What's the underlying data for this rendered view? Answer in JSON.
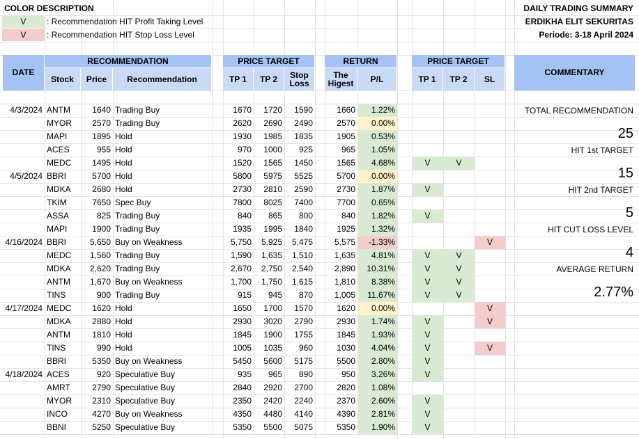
{
  "legend": {
    "title": "COLOR DESCRIPTION",
    "items": [
      {
        "mark": "V",
        "text": ": Recommendation HIT Profit Taking Level",
        "color": "#d9ead3"
      },
      {
        "mark": "V",
        "text": ": Recommendation HIT Stop Loss Level",
        "color": "#f4cccc"
      }
    ]
  },
  "summary": {
    "title": "DAILY TRADING SUMMARY",
    "company": "ERDIKHA ELIT SEKURITAS",
    "period": "Periode:  3-18 April 2024"
  },
  "headers": {
    "date": "DATE",
    "recommendation": "RECOMMENDATION",
    "stock": "Stock",
    "price": "Price",
    "recommendation_col": "Recommendation",
    "price_target": "PRICE TARGET",
    "tp1": "TP 1",
    "tp2": "TP 2",
    "stop_loss": "Stop Loss",
    "return": "RETURN",
    "the_highest": "The Higest",
    "pl": "P/L",
    "price_target2": "PRICE TARGET",
    "hit_tp1": "TP 1",
    "hit_tp2": "TP 2",
    "hit_sl": "SL",
    "commentary": "COMMENTARY"
  },
  "rows": [
    {
      "date": "4/3/2024",
      "stock": "ANTM",
      "price": "1640",
      "rec": "Trading Buy",
      "tp1": "1670",
      "tp2": "1720",
      "sl": "1590",
      "high": "1660",
      "pl": "1.22%",
      "pl_status": "pos",
      "hit_tp1": "",
      "hit_tp2": "",
      "hit_sl": ""
    },
    {
      "date": "",
      "stock": "MYOR",
      "price": "2570",
      "rec": "Trading Buy",
      "tp1": "2620",
      "tp2": "2690",
      "sl": "2490",
      "high": "2570",
      "pl": "0.00%",
      "pl_status": "zero",
      "hit_tp1": "",
      "hit_tp2": "",
      "hit_sl": ""
    },
    {
      "date": "",
      "stock": "MAPI",
      "price": "1895",
      "rec": "Hold",
      "tp1": "1930",
      "tp2": "1985",
      "sl": "1835",
      "high": "1905",
      "pl": "0.53%",
      "pl_status": "pos",
      "hit_tp1": "",
      "hit_tp2": "",
      "hit_sl": ""
    },
    {
      "date": "",
      "stock": "ACES",
      "price": "955",
      "rec": "Hold",
      "tp1": "970",
      "tp2": "1000",
      "sl": "925",
      "high": "965",
      "pl": "1.05%",
      "pl_status": "pos",
      "hit_tp1": "",
      "hit_tp2": "",
      "hit_sl": ""
    },
    {
      "date": "",
      "stock": "MEDC",
      "price": "1495",
      "rec": "Hold",
      "tp1": "1520",
      "tp2": "1565",
      "sl": "1450",
      "high": "1565",
      "pl": "4.68%",
      "pl_status": "pos",
      "hit_tp1": "V",
      "hit_tp2": "V",
      "hit_sl": ""
    },
    {
      "date": "4/5/2024",
      "stock": "BBRI",
      "price": "5700",
      "rec": "Hold",
      "tp1": "5800",
      "tp2": "5975",
      "sl": "5525",
      "high": "5700",
      "pl": "0.00%",
      "pl_status": "zero",
      "hit_tp1": "",
      "hit_tp2": "",
      "hit_sl": ""
    },
    {
      "date": "",
      "stock": "MDKA",
      "price": "2680",
      "rec": "Hold",
      "tp1": "2730",
      "tp2": "2810",
      "sl": "2590",
      "high": "2730",
      "pl": "1.87%",
      "pl_status": "pos",
      "hit_tp1": "V",
      "hit_tp2": "",
      "hit_sl": ""
    },
    {
      "date": "",
      "stock": "TKIM",
      "price": "7650",
      "rec": "Spec Buy",
      "tp1": "7800",
      "tp2": "8025",
      "sl": "7400",
      "high": "7700",
      "pl": "0.65%",
      "pl_status": "pos",
      "hit_tp1": "",
      "hit_tp2": "",
      "hit_sl": ""
    },
    {
      "date": "",
      "stock": "ASSA",
      "price": "825",
      "rec": "Trading Buy",
      "tp1": "840",
      "tp2": "865",
      "sl": "800",
      "high": "840",
      "pl": "1.82%",
      "pl_status": "pos",
      "hit_tp1": "V",
      "hit_tp2": "",
      "hit_sl": ""
    },
    {
      "date": "",
      "stock": "MAPI",
      "price": "1900",
      "rec": "Trading Buy",
      "tp1": "1935",
      "tp2": "1995",
      "sl": "1840",
      "high": "1925",
      "pl": "1.32%",
      "pl_status": "pos",
      "hit_tp1": "",
      "hit_tp2": "",
      "hit_sl": ""
    },
    {
      "date": "4/16/2024",
      "stock": "BBRI",
      "price": "5,650",
      "rec": "Buy on Weakness",
      "tp1": "5,750",
      "tp2": "5,925",
      "sl": "5,475",
      "high": "5,575",
      "pl": "-1.33%",
      "pl_status": "neg",
      "hit_tp1": "",
      "hit_tp2": "",
      "hit_sl": "V"
    },
    {
      "date": "",
      "stock": "MEDC",
      "price": "1,560",
      "rec": "Trading Buy",
      "tp1": "1,590",
      "tp2": "1,635",
      "sl": "1,510",
      "high": "1,635",
      "pl": "4.81%",
      "pl_status": "pos",
      "hit_tp1": "V",
      "hit_tp2": "V",
      "hit_sl": ""
    },
    {
      "date": "",
      "stock": "MDKA",
      "price": "2,620",
      "rec": "Trading Buy",
      "tp1": "2,670",
      "tp2": "2,750",
      "sl": "2,540",
      "high": "2,890",
      "pl": "10.31%",
      "pl_status": "pos",
      "hit_tp1": "V",
      "hit_tp2": "V",
      "hit_sl": ""
    },
    {
      "date": "",
      "stock": "ANTM",
      "price": "1,670",
      "rec": "Buy on Weakness",
      "tp1": "1,700",
      "tp2": "1,750",
      "sl": "1,615",
      "high": "1,810",
      "pl": "8.38%",
      "pl_status": "pos",
      "hit_tp1": "V",
      "hit_tp2": "V",
      "hit_sl": ""
    },
    {
      "date": "",
      "stock": "TINS",
      "price": "900",
      "rec": "Trading Buy",
      "tp1": "915",
      "tp2": "945",
      "sl": "870",
      "high": "1,005",
      "pl": "11.67%",
      "pl_status": "pos",
      "hit_tp1": "V",
      "hit_tp2": "V",
      "hit_sl": ""
    },
    {
      "date": "4/17/2024",
      "stock": "MEDC",
      "price": "1620",
      "rec": "Hold",
      "tp1": "1650",
      "tp2": "1700",
      "sl": "1570",
      "high": "1620",
      "pl": "0.00%",
      "pl_status": "zero",
      "hit_tp1": "",
      "hit_tp2": "",
      "hit_sl": "V"
    },
    {
      "date": "",
      "stock": "MDKA",
      "price": "2880",
      "rec": "Hold",
      "tp1": "2930",
      "tp2": "3020",
      "sl": "2790",
      "high": "2930",
      "pl": "1.74%",
      "pl_status": "pos",
      "hit_tp1": "V",
      "hit_tp2": "",
      "hit_sl": "V"
    },
    {
      "date": "",
      "stock": "ANTM",
      "price": "1810",
      "rec": "Hold",
      "tp1": "1845",
      "tp2": "1900",
      "sl": "1755",
      "high": "1845",
      "pl": "1.93%",
      "pl_status": "pos",
      "hit_tp1": "V",
      "hit_tp2": "",
      "hit_sl": ""
    },
    {
      "date": "",
      "stock": "TINS",
      "price": "990",
      "rec": "Hold",
      "tp1": "1005",
      "tp2": "1035",
      "sl": "960",
      "high": "1030",
      "pl": "4.04%",
      "pl_status": "pos",
      "hit_tp1": "V",
      "hit_tp2": "",
      "hit_sl": "V"
    },
    {
      "date": "",
      "stock": "BBRI",
      "price": "5350",
      "rec": "Buy on Weakness",
      "tp1": "5450",
      "tp2": "5600",
      "sl": "5175",
      "high": "5500",
      "pl": "2.80%",
      "pl_status": "pos",
      "hit_tp1": "V",
      "hit_tp2": "",
      "hit_sl": ""
    },
    {
      "date": "4/18/2024",
      "stock": "ACES",
      "price": "920",
      "rec": "Speculative Buy",
      "tp1": "935",
      "tp2": "965",
      "sl": "890",
      "high": "950",
      "pl": "3.26%",
      "pl_status": "pos",
      "hit_tp1": "V",
      "hit_tp2": "",
      "hit_sl": ""
    },
    {
      "date": "",
      "stock": "AMRT",
      "price": "2790",
      "rec": "Speculative Buy",
      "tp1": "2840",
      "tp2": "2920",
      "sl": "2700",
      "high": "2820",
      "pl": "1.08%",
      "pl_status": "pos",
      "hit_tp1": "",
      "hit_tp2": "",
      "hit_sl": ""
    },
    {
      "date": "",
      "stock": "MYOR",
      "price": "2310",
      "rec": "Speculative Buy",
      "tp1": "2350",
      "tp2": "2420",
      "sl": "2240",
      "high": "2370",
      "pl": "2.60%",
      "pl_status": "pos",
      "hit_tp1": "V",
      "hit_tp2": "",
      "hit_sl": ""
    },
    {
      "date": "",
      "stock": "INCO",
      "price": "4270",
      "rec": "Buy on Weakness",
      "tp1": "4350",
      "tp2": "4480",
      "sl": "4140",
      "high": "4390",
      "pl": "2.81%",
      "pl_status": "pos",
      "hit_tp1": "V",
      "hit_tp2": "",
      "hit_sl": ""
    },
    {
      "date": "",
      "stock": "BBNI",
      "price": "5250",
      "rec": "Speculative Buy",
      "tp1": "5350",
      "tp2": "5500",
      "sl": "5075",
      "high": "5350",
      "pl": "1.90%",
      "pl_status": "pos",
      "hit_tp1": "V",
      "hit_tp2": "",
      "hit_sl": ""
    }
  ],
  "commentary": {
    "total_label": "TOTAL RECOMMENDATION",
    "total_value": "25",
    "hit1_label": "HIT 1st TARGET",
    "hit1_value": "15",
    "hit2_label": "HIT 2nd TARGET",
    "hit2_value": "5",
    "cut_label": "HIT CUT LOSS LEVEL",
    "cut_value": "4",
    "avg_label": "AVERAGE RETURN",
    "avg_value": "2.77%"
  },
  "colors": {
    "header": "#a4c2f4",
    "subheader": "#c9daf8",
    "profit": "#d9ead3",
    "stoploss": "#f4cccc",
    "neutral": "#fff2cc"
  }
}
